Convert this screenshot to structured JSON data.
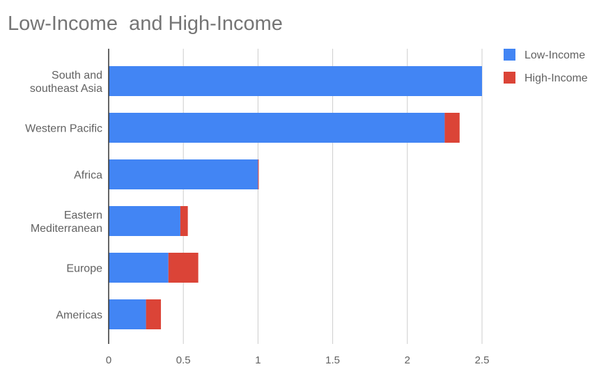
{
  "chart_data": {
    "type": "bar",
    "orientation": "horizontal",
    "stacked": true,
    "title": "Low-Income  and High-Income",
    "categories": [
      [
        "South and",
        "southeast Asia"
      ],
      [
        "Western Pacific"
      ],
      [
        "Africa"
      ],
      [
        "Eastern",
        "Mediterranean"
      ],
      [
        "Europe"
      ],
      [
        "Americas"
      ]
    ],
    "series": [
      {
        "name": "Low-Income",
        "color": "#4285f4",
        "values": [
          2.5,
          2.25,
          1.0,
          0.48,
          0.4,
          0.25
        ]
      },
      {
        "name": "High-Income",
        "color": "#db4437",
        "values": [
          0.0,
          0.1,
          0.005,
          0.05,
          0.2,
          0.1
        ]
      }
    ],
    "xlim": [
      0,
      2.5
    ],
    "xticks": [
      0,
      0.5,
      1,
      1.5,
      2,
      2.5
    ],
    "xtick_labels": [
      "0",
      "0.5",
      "1",
      "1.5",
      "2",
      "2.5"
    ],
    "grid": "vertical",
    "legend_position": "right"
  }
}
